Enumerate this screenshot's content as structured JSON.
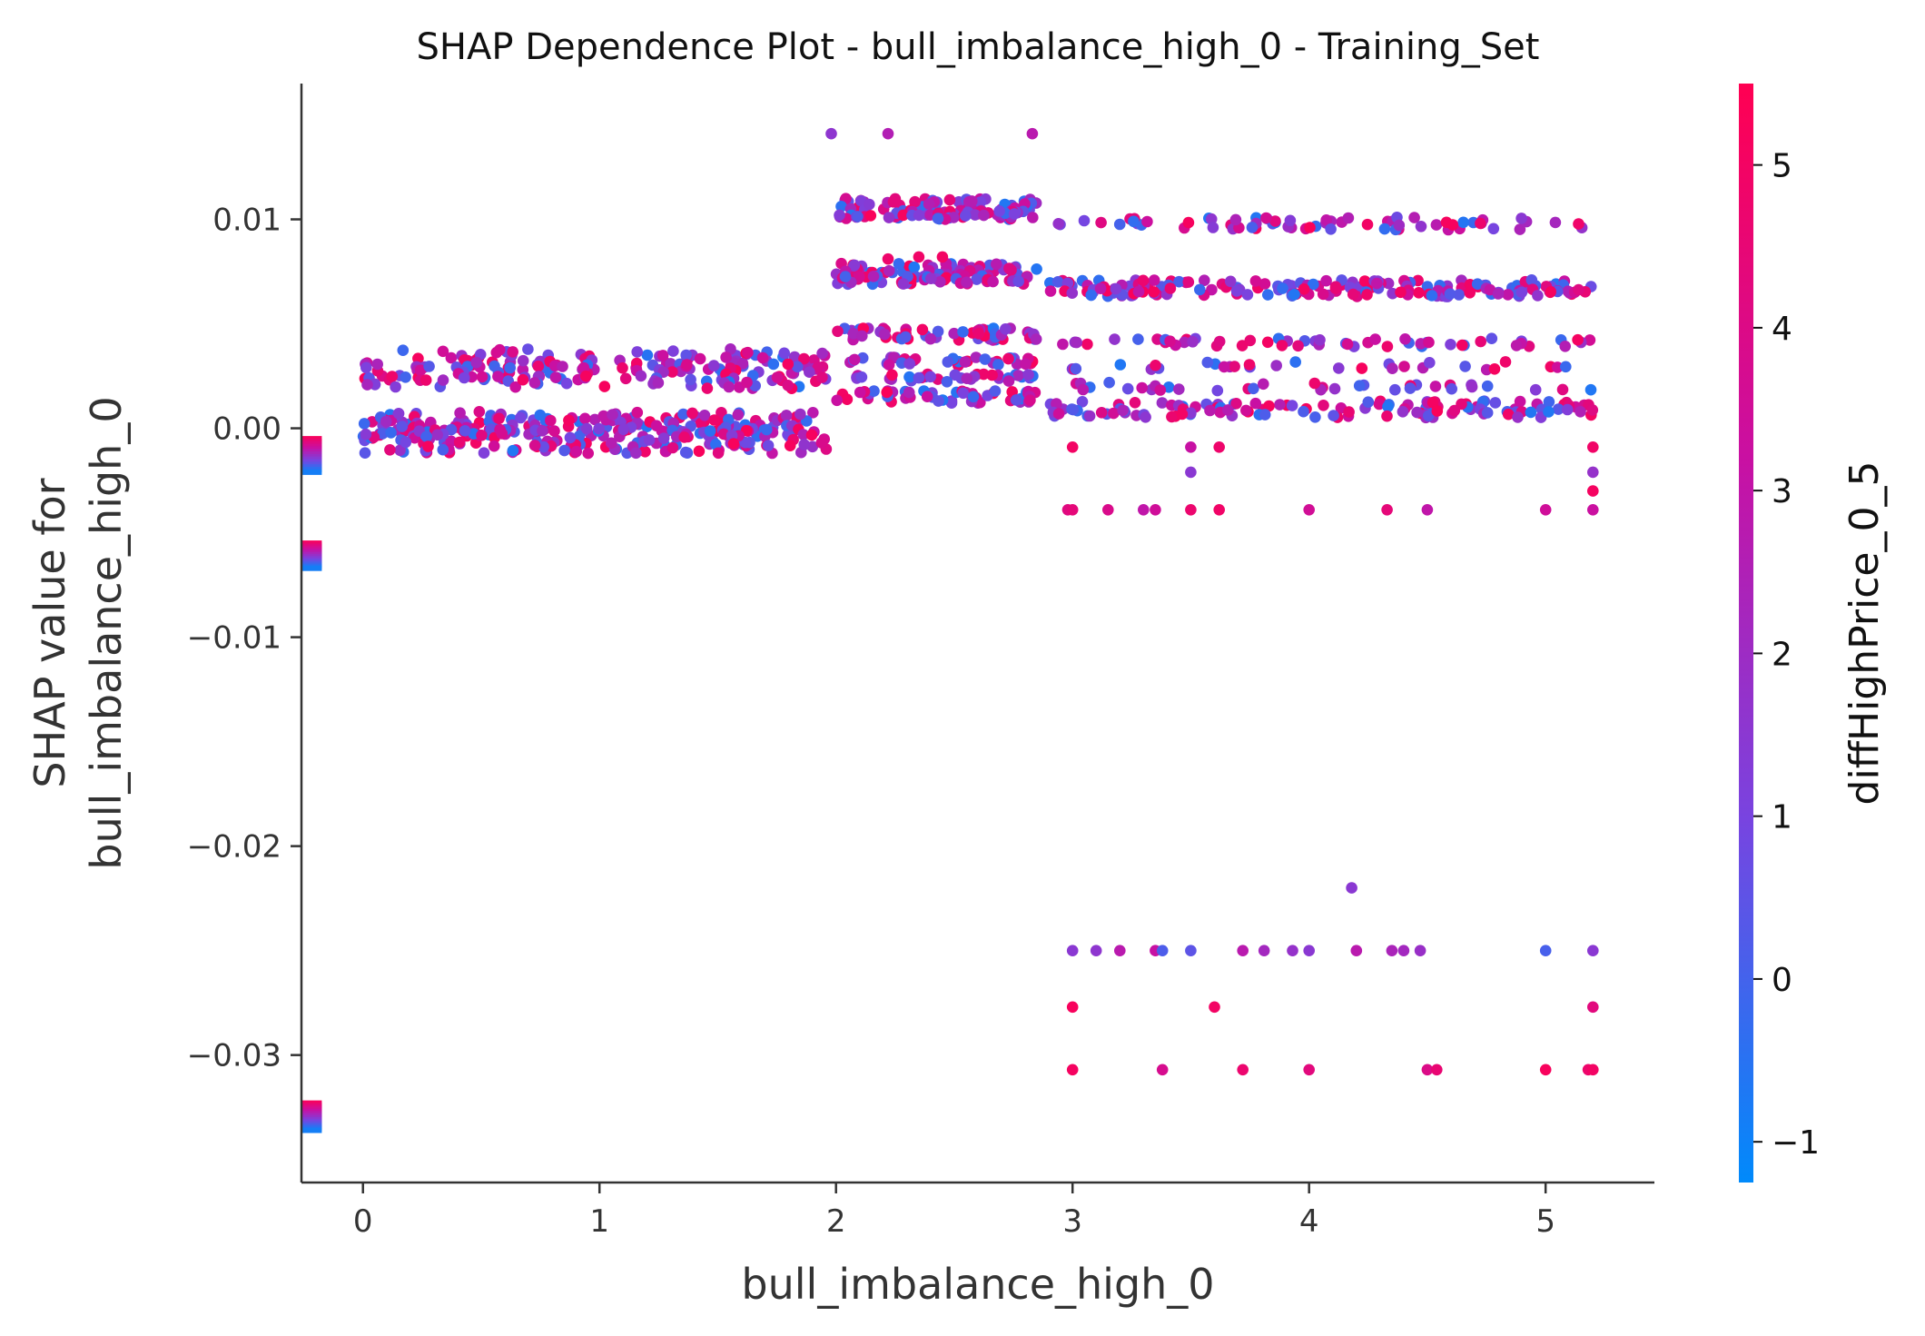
{
  "chart_data": {
    "type": "scatter",
    "title": "SHAP Dependence Plot - bull_imbalance_high_0 - Training_Set",
    "xlabel": "bull_imbalance_high_0",
    "ylabel_lines": [
      "SHAP value for",
      "bull_imbalance_high_0"
    ],
    "xlim": [
      -0.26,
      5.46
    ],
    "ylim": [
      -0.0361,
      0.0165
    ],
    "x_ticks": [
      0,
      1,
      2,
      3,
      4,
      5
    ],
    "x_tick_labels": [
      "0",
      "1",
      "2",
      "3",
      "4",
      "5"
    ],
    "y_ticks": [
      0.01,
      0.0,
      -0.01,
      -0.02,
      -0.03
    ],
    "y_tick_labels": [
      "0.01",
      "0.00",
      "−0.01",
      "−0.02",
      "−0.03"
    ],
    "grid": false,
    "colorbar": {
      "label": "diffHighPrice_0_5",
      "range": [
        -1.25,
        5.5
      ],
      "ticks": [
        -1,
        0,
        1,
        2,
        3,
        4,
        5
      ],
      "tick_labels": [
        "−1",
        "0",
        "1",
        "2",
        "3",
        "4",
        "5"
      ],
      "colors": [
        "#008afb",
        "#7844e0",
        "#c910a2",
        "#ff0052"
      ]
    },
    "missing_bands": [
      {
        "x": -0.22,
        "y_range": [
          -0.0005,
          -0.0021
        ]
      },
      {
        "x": -0.22,
        "y_range": [
          -0.0055,
          -0.0067
        ]
      },
      {
        "x": -0.22,
        "y_range": [
          -0.0323,
          -0.0336
        ]
      }
    ],
    "bands": [
      {
        "x_range": [
          0,
          1.96
        ],
        "y": 0.0033,
        "spread": 0.0005,
        "count": 90,
        "x_end_jitter": 1.65
      },
      {
        "x_range": [
          0,
          1.96
        ],
        "y": 0.0027,
        "spread": 0.0004,
        "count": 70
      },
      {
        "x_range": [
          0,
          1.96
        ],
        "y": 0.0022,
        "spread": 0.0003,
        "count": 50
      },
      {
        "x_range": [
          0,
          1.96
        ],
        "y": 0.0002,
        "spread": 0.0006,
        "count": 160
      },
      {
        "x_range": [
          0,
          1.96
        ],
        "y": -0.0006,
        "spread": 0.0006,
        "count": 160
      },
      {
        "x_range": [
          2.0,
          2.85
        ],
        "y": 0.0107,
        "spread": 0.0003,
        "count": 60
      },
      {
        "x_range": [
          2.0,
          2.85
        ],
        "y": 0.0102,
        "spread": 0.0002,
        "count": 50
      },
      {
        "x_range": [
          2.0,
          2.85
        ],
        "y": 0.0076,
        "spread": 0.0003,
        "count": 60
      },
      {
        "x_range": [
          2.0,
          2.85
        ],
        "y": 0.0071,
        "spread": 0.0002,
        "count": 50
      },
      {
        "x_range": [
          2.0,
          2.85
        ],
        "y": 0.0045,
        "spread": 0.0003,
        "count": 55
      },
      {
        "x_range": [
          2.0,
          2.85
        ],
        "y": 0.0032,
        "spread": 0.0002,
        "count": 35
      },
      {
        "x_range": [
          2.0,
          2.85
        ],
        "y": 0.0024,
        "spread": 0.0002,
        "count": 35
      },
      {
        "x_range": [
          2.0,
          2.85
        ],
        "y": 0.0015,
        "spread": 0.0003,
        "count": 50
      },
      {
        "x_range": [
          2.9,
          5.2
        ],
        "y": 0.0098,
        "spread": 0.0003,
        "count": 70
      },
      {
        "x_range": [
          2.9,
          5.2
        ],
        "y": 0.0069,
        "spread": 0.0002,
        "count": 90
      },
      {
        "x_range": [
          2.9,
          5.2
        ],
        "y": 0.0065,
        "spread": 0.0002,
        "count": 90
      },
      {
        "x_range": [
          2.9,
          5.2
        ],
        "y": 0.0041,
        "spread": 0.0002,
        "count": 55
      },
      {
        "x_range": [
          2.9,
          5.2
        ],
        "y": 0.003,
        "spread": 0.0002,
        "count": 30
      },
      {
        "x_range": [
          2.9,
          5.2
        ],
        "y": 0.002,
        "spread": 0.0002,
        "count": 35
      },
      {
        "x_range": [
          2.9,
          5.2
        ],
        "y": 0.0011,
        "spread": 0.0002,
        "count": 70
      },
      {
        "x_range": [
          2.9,
          5.2
        ],
        "y": 0.0007,
        "spread": 0.0002,
        "count": 60
      }
    ],
    "points": [
      [
        1.98,
        0.0141,
        1.6
      ],
      [
        2.22,
        0.0141,
        2.6
      ],
      [
        2.83,
        0.0141,
        2.8
      ],
      [
        2.22,
        0.0081,
        4.8
      ],
      [
        2.35,
        0.0082,
        4.9
      ],
      [
        2.45,
        0.0082,
        5.0
      ],
      [
        3.0,
        -0.0009,
        5.0
      ],
      [
        3.5,
        -0.0009,
        3.2
      ],
      [
        3.62,
        -0.0009,
        4.8
      ],
      [
        5.2,
        -0.0009,
        4.9
      ],
      [
        3.5,
        -0.0021,
        1.5
      ],
      [
        5.2,
        -0.0021,
        1.8
      ],
      [
        5.2,
        -0.003,
        5.1
      ],
      [
        2.98,
        -0.0039,
        4.2
      ],
      [
        3.0,
        -0.0039,
        4.4
      ],
      [
        3.15,
        -0.0039,
        3.9
      ],
      [
        3.3,
        -0.0039,
        3.0
      ],
      [
        3.35,
        -0.0039,
        3.5
      ],
      [
        3.5,
        -0.0039,
        4.7
      ],
      [
        3.62,
        -0.0039,
        4.9
      ],
      [
        4.0,
        -0.0039,
        3.6
      ],
      [
        4.33,
        -0.0039,
        4.4
      ],
      [
        4.5,
        -0.0039,
        3.0
      ],
      [
        5.0,
        -0.0039,
        3.5
      ],
      [
        5.2,
        -0.0039,
        3.3
      ],
      [
        4.18,
        -0.022,
        1.5
      ],
      [
        3.0,
        -0.025,
        1.5
      ],
      [
        3.1,
        -0.025,
        1.6
      ],
      [
        3.2,
        -0.025,
        2.8
      ],
      [
        3.35,
        -0.025,
        3.2
      ],
      [
        3.38,
        -0.025,
        0.2
      ],
      [
        3.5,
        -0.025,
        0.5
      ],
      [
        3.72,
        -0.025,
        2.8
      ],
      [
        3.81,
        -0.025,
        2.2
      ],
      [
        3.93,
        -0.025,
        1.8
      ],
      [
        4.0,
        -0.025,
        1.5
      ],
      [
        4.2,
        -0.025,
        2.8
      ],
      [
        4.35,
        -0.025,
        2.4
      ],
      [
        4.4,
        -0.025,
        2.2
      ],
      [
        4.47,
        -0.025,
        1.9
      ],
      [
        5.0,
        -0.025,
        0.1
      ],
      [
        5.2,
        -0.025,
        1.5
      ],
      [
        3.0,
        -0.0277,
        5.2
      ],
      [
        3.6,
        -0.0277,
        5.0
      ],
      [
        5.2,
        -0.0277,
        4.3
      ],
      [
        3.0,
        -0.0307,
        5.1
      ],
      [
        3.38,
        -0.0307,
        3.8
      ],
      [
        3.72,
        -0.0307,
        4.7
      ],
      [
        4.0,
        -0.0307,
        4.3
      ],
      [
        4.5,
        -0.0307,
        4.0
      ],
      [
        4.54,
        -0.0307,
        4.6
      ],
      [
        5.0,
        -0.0307,
        5.2
      ],
      [
        5.18,
        -0.0307,
        4.8
      ],
      [
        5.2,
        -0.0307,
        5.0
      ]
    ]
  }
}
